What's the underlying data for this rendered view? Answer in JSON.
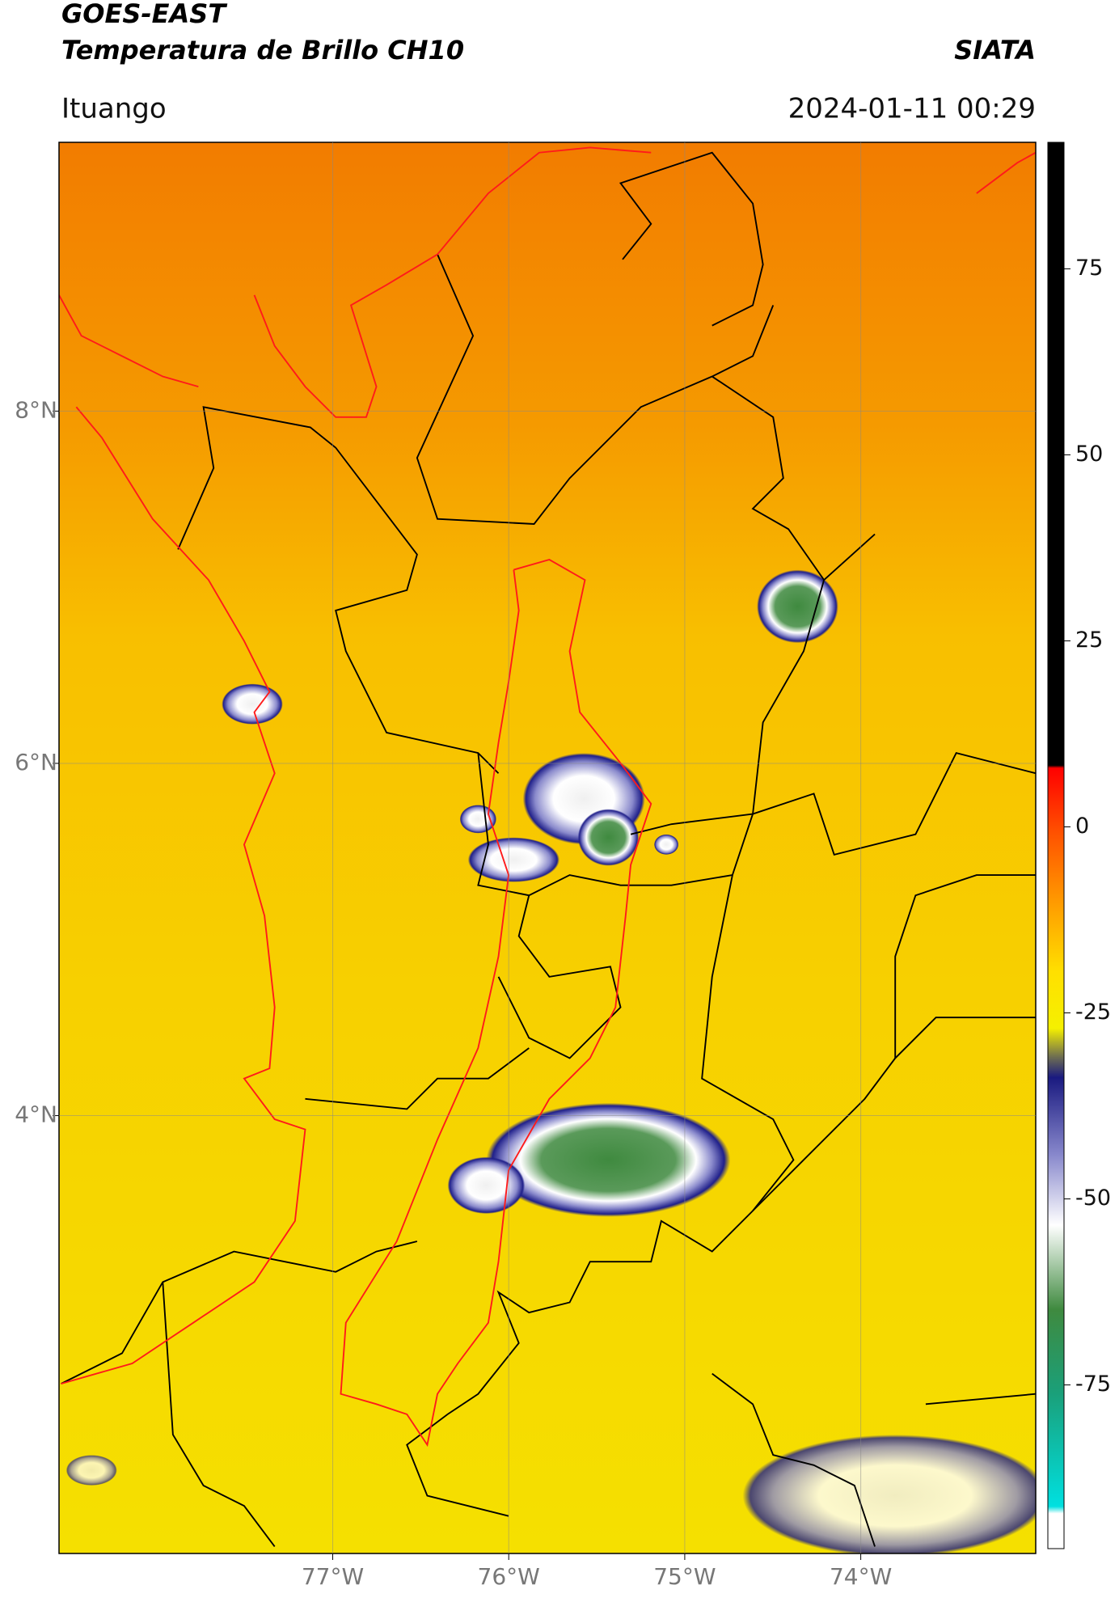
{
  "chart_data": {
    "type": "map",
    "title": "GOES-EAST",
    "subtitle": "Temperatura de Brillo CH10",
    "source": "SIATA",
    "location": "Ituango",
    "datetime": "2024-01-11 00:29",
    "xlim": [
      -78.555,
      -73.006
    ],
    "ylim": [
      1.514,
      9.526
    ],
    "xticks": [
      {
        "value": -77,
        "label": "77°W"
      },
      {
        "value": -76,
        "label": "76°W"
      },
      {
        "value": -75,
        "label": "75°W"
      },
      {
        "value": -74,
        "label": "74°W"
      }
    ],
    "yticks": [
      {
        "value": 8,
        "label": "8°N"
      },
      {
        "value": 6,
        "label": "6°N"
      },
      {
        "value": 4,
        "label": "4°N"
      }
    ],
    "grid": true,
    "colorbar": {
      "lim": [
        -97,
        92
      ],
      "ticks": [
        75,
        50,
        25,
        0,
        -25,
        -50,
        -75
      ]
    }
  }
}
